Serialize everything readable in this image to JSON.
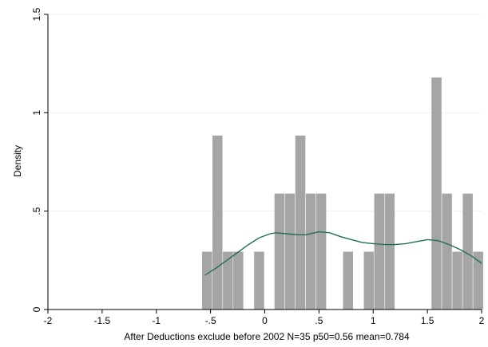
{
  "chart_data": {
    "type": "bar",
    "title": "",
    "xlabel": "After Deductions exclude before 2002 N=35 p50=0.56 mean=0.784",
    "ylabel": "Density",
    "xlim": [
      -2,
      2
    ],
    "ylim": [
      0,
      1.5
    ],
    "x_ticks": [
      {
        "value": -2,
        "label": "-2"
      },
      {
        "value": -1.5,
        "label": "-1.5"
      },
      {
        "value": -1,
        "label": "-1"
      },
      {
        "value": -0.5,
        "label": "-.5"
      },
      {
        "value": 0,
        "label": "0"
      },
      {
        "value": 0.5,
        "label": ".5"
      },
      {
        "value": 1,
        "label": "1"
      },
      {
        "value": 1.5,
        "label": "1.5"
      },
      {
        "value": 2,
        "label": "2"
      }
    ],
    "y_ticks": [
      {
        "value": 0,
        "label": "0"
      },
      {
        "value": 0.5,
        "label": ".5"
      },
      {
        "value": 1,
        "label": "1"
      },
      {
        "value": 1.5,
        "label": "1.5"
      }
    ],
    "grid": true,
    "bin_width": 0.096,
    "bars": [
      {
        "start": -0.58,
        "end": -0.484,
        "value": 0.295
      },
      {
        "start": -0.484,
        "end": -0.388,
        "value": 0.885
      },
      {
        "start": -0.388,
        "end": -0.292,
        "value": 0.295
      },
      {
        "start": -0.292,
        "end": -0.196,
        "value": 0.295
      },
      {
        "start": -0.1,
        "end": -0.004,
        "value": 0.295
      },
      {
        "start": 0.088,
        "end": 0.184,
        "value": 0.59
      },
      {
        "start": 0.184,
        "end": 0.28,
        "value": 0.59
      },
      {
        "start": 0.28,
        "end": 0.376,
        "value": 0.885
      },
      {
        "start": 0.376,
        "end": 0.472,
        "value": 0.59
      },
      {
        "start": 0.472,
        "end": 0.568,
        "value": 0.59
      },
      {
        "start": 0.72,
        "end": 0.816,
        "value": 0.295
      },
      {
        "start": 0.912,
        "end": 1.008,
        "value": 0.295
      },
      {
        "start": 1.008,
        "end": 1.104,
        "value": 0.59
      },
      {
        "start": 1.104,
        "end": 1.2,
        "value": 0.59
      },
      {
        "start": 1.536,
        "end": 1.632,
        "value": 1.18
      },
      {
        "start": 1.632,
        "end": 1.728,
        "value": 0.59
      },
      {
        "start": 1.728,
        "end": 1.824,
        "value": 0.295
      },
      {
        "start": 1.824,
        "end": 1.92,
        "value": 0.59
      },
      {
        "start": 1.92,
        "end": 2.016,
        "value": 0.295
      }
    ],
    "density_line": {
      "x": [
        -0.55,
        -0.45,
        -0.35,
        -0.25,
        -0.15,
        -0.05,
        0.05,
        0.1,
        0.2,
        0.3,
        0.38,
        0.5,
        0.6,
        0.7,
        0.8,
        0.9,
        1.0,
        1.1,
        1.2,
        1.3,
        1.4,
        1.5,
        1.6,
        1.7,
        1.8,
        1.9,
        2.0
      ],
      "y": [
        0.175,
        0.21,
        0.25,
        0.29,
        0.33,
        0.365,
        0.385,
        0.39,
        0.385,
        0.38,
        0.38,
        0.395,
        0.39,
        0.37,
        0.355,
        0.34,
        0.335,
        0.33,
        0.33,
        0.335,
        0.345,
        0.355,
        0.35,
        0.33,
        0.305,
        0.275,
        0.235
      ]
    },
    "colors": {
      "bars": "#a5a5a5",
      "density_line": "#1f6e5a",
      "grid": "#eaf1f4",
      "axis": "#000000"
    }
  }
}
